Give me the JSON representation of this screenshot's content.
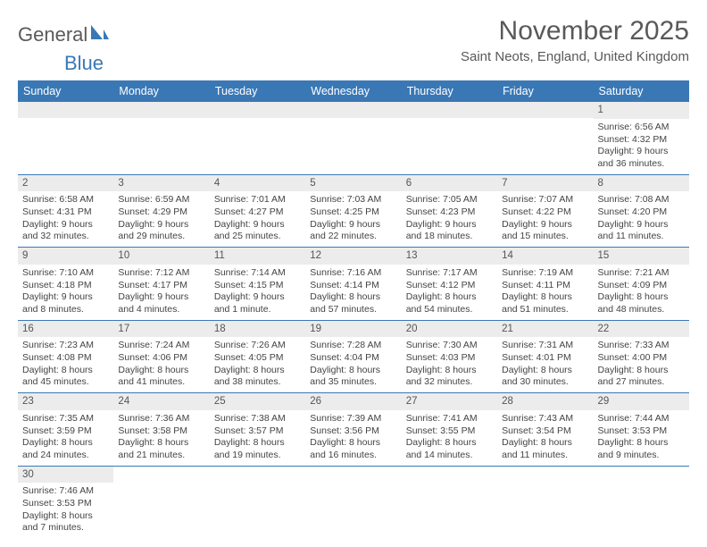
{
  "logo": {
    "text1": "General",
    "text2": "Blue"
  },
  "title": "November 2025",
  "location": "Saint Neots, England, United Kingdom",
  "colors": {
    "header_bg": "#3a78b5",
    "header_text": "#ffffff",
    "daynum_bg": "#ececec",
    "border": "#3a78b5",
    "title_color": "#595959"
  },
  "weekdays": [
    "Sunday",
    "Monday",
    "Tuesday",
    "Wednesday",
    "Thursday",
    "Friday",
    "Saturday"
  ],
  "weeks": [
    [
      null,
      null,
      null,
      null,
      null,
      null,
      {
        "n": "1",
        "sr": "6:56 AM",
        "ss": "4:32 PM",
        "dl": "9 hours and 36 minutes."
      }
    ],
    [
      {
        "n": "2",
        "sr": "6:58 AM",
        "ss": "4:31 PM",
        "dl": "9 hours and 32 minutes."
      },
      {
        "n": "3",
        "sr": "6:59 AM",
        "ss": "4:29 PM",
        "dl": "9 hours and 29 minutes."
      },
      {
        "n": "4",
        "sr": "7:01 AM",
        "ss": "4:27 PM",
        "dl": "9 hours and 25 minutes."
      },
      {
        "n": "5",
        "sr": "7:03 AM",
        "ss": "4:25 PM",
        "dl": "9 hours and 22 minutes."
      },
      {
        "n": "6",
        "sr": "7:05 AM",
        "ss": "4:23 PM",
        "dl": "9 hours and 18 minutes."
      },
      {
        "n": "7",
        "sr": "7:07 AM",
        "ss": "4:22 PM",
        "dl": "9 hours and 15 minutes."
      },
      {
        "n": "8",
        "sr": "7:08 AM",
        "ss": "4:20 PM",
        "dl": "9 hours and 11 minutes."
      }
    ],
    [
      {
        "n": "9",
        "sr": "7:10 AM",
        "ss": "4:18 PM",
        "dl": "9 hours and 8 minutes."
      },
      {
        "n": "10",
        "sr": "7:12 AM",
        "ss": "4:17 PM",
        "dl": "9 hours and 4 minutes."
      },
      {
        "n": "11",
        "sr": "7:14 AM",
        "ss": "4:15 PM",
        "dl": "9 hours and 1 minute."
      },
      {
        "n": "12",
        "sr": "7:16 AM",
        "ss": "4:14 PM",
        "dl": "8 hours and 57 minutes."
      },
      {
        "n": "13",
        "sr": "7:17 AM",
        "ss": "4:12 PM",
        "dl": "8 hours and 54 minutes."
      },
      {
        "n": "14",
        "sr": "7:19 AM",
        "ss": "4:11 PM",
        "dl": "8 hours and 51 minutes."
      },
      {
        "n": "15",
        "sr": "7:21 AM",
        "ss": "4:09 PM",
        "dl": "8 hours and 48 minutes."
      }
    ],
    [
      {
        "n": "16",
        "sr": "7:23 AM",
        "ss": "4:08 PM",
        "dl": "8 hours and 45 minutes."
      },
      {
        "n": "17",
        "sr": "7:24 AM",
        "ss": "4:06 PM",
        "dl": "8 hours and 41 minutes."
      },
      {
        "n": "18",
        "sr": "7:26 AM",
        "ss": "4:05 PM",
        "dl": "8 hours and 38 minutes."
      },
      {
        "n": "19",
        "sr": "7:28 AM",
        "ss": "4:04 PM",
        "dl": "8 hours and 35 minutes."
      },
      {
        "n": "20",
        "sr": "7:30 AM",
        "ss": "4:03 PM",
        "dl": "8 hours and 32 minutes."
      },
      {
        "n": "21",
        "sr": "7:31 AM",
        "ss": "4:01 PM",
        "dl": "8 hours and 30 minutes."
      },
      {
        "n": "22",
        "sr": "7:33 AM",
        "ss": "4:00 PM",
        "dl": "8 hours and 27 minutes."
      }
    ],
    [
      {
        "n": "23",
        "sr": "7:35 AM",
        "ss": "3:59 PM",
        "dl": "8 hours and 24 minutes."
      },
      {
        "n": "24",
        "sr": "7:36 AM",
        "ss": "3:58 PM",
        "dl": "8 hours and 21 minutes."
      },
      {
        "n": "25",
        "sr": "7:38 AM",
        "ss": "3:57 PM",
        "dl": "8 hours and 19 minutes."
      },
      {
        "n": "26",
        "sr": "7:39 AM",
        "ss": "3:56 PM",
        "dl": "8 hours and 16 minutes."
      },
      {
        "n": "27",
        "sr": "7:41 AM",
        "ss": "3:55 PM",
        "dl": "8 hours and 14 minutes."
      },
      {
        "n": "28",
        "sr": "7:43 AM",
        "ss": "3:54 PM",
        "dl": "8 hours and 11 minutes."
      },
      {
        "n": "29",
        "sr": "7:44 AM",
        "ss": "3:53 PM",
        "dl": "8 hours and 9 minutes."
      }
    ],
    [
      {
        "n": "30",
        "sr": "7:46 AM",
        "ss": "3:53 PM",
        "dl": "8 hours and 7 minutes."
      },
      null,
      null,
      null,
      null,
      null,
      null
    ]
  ],
  "labels": {
    "sunrise": "Sunrise:",
    "sunset": "Sunset:",
    "daylight": "Daylight:"
  }
}
